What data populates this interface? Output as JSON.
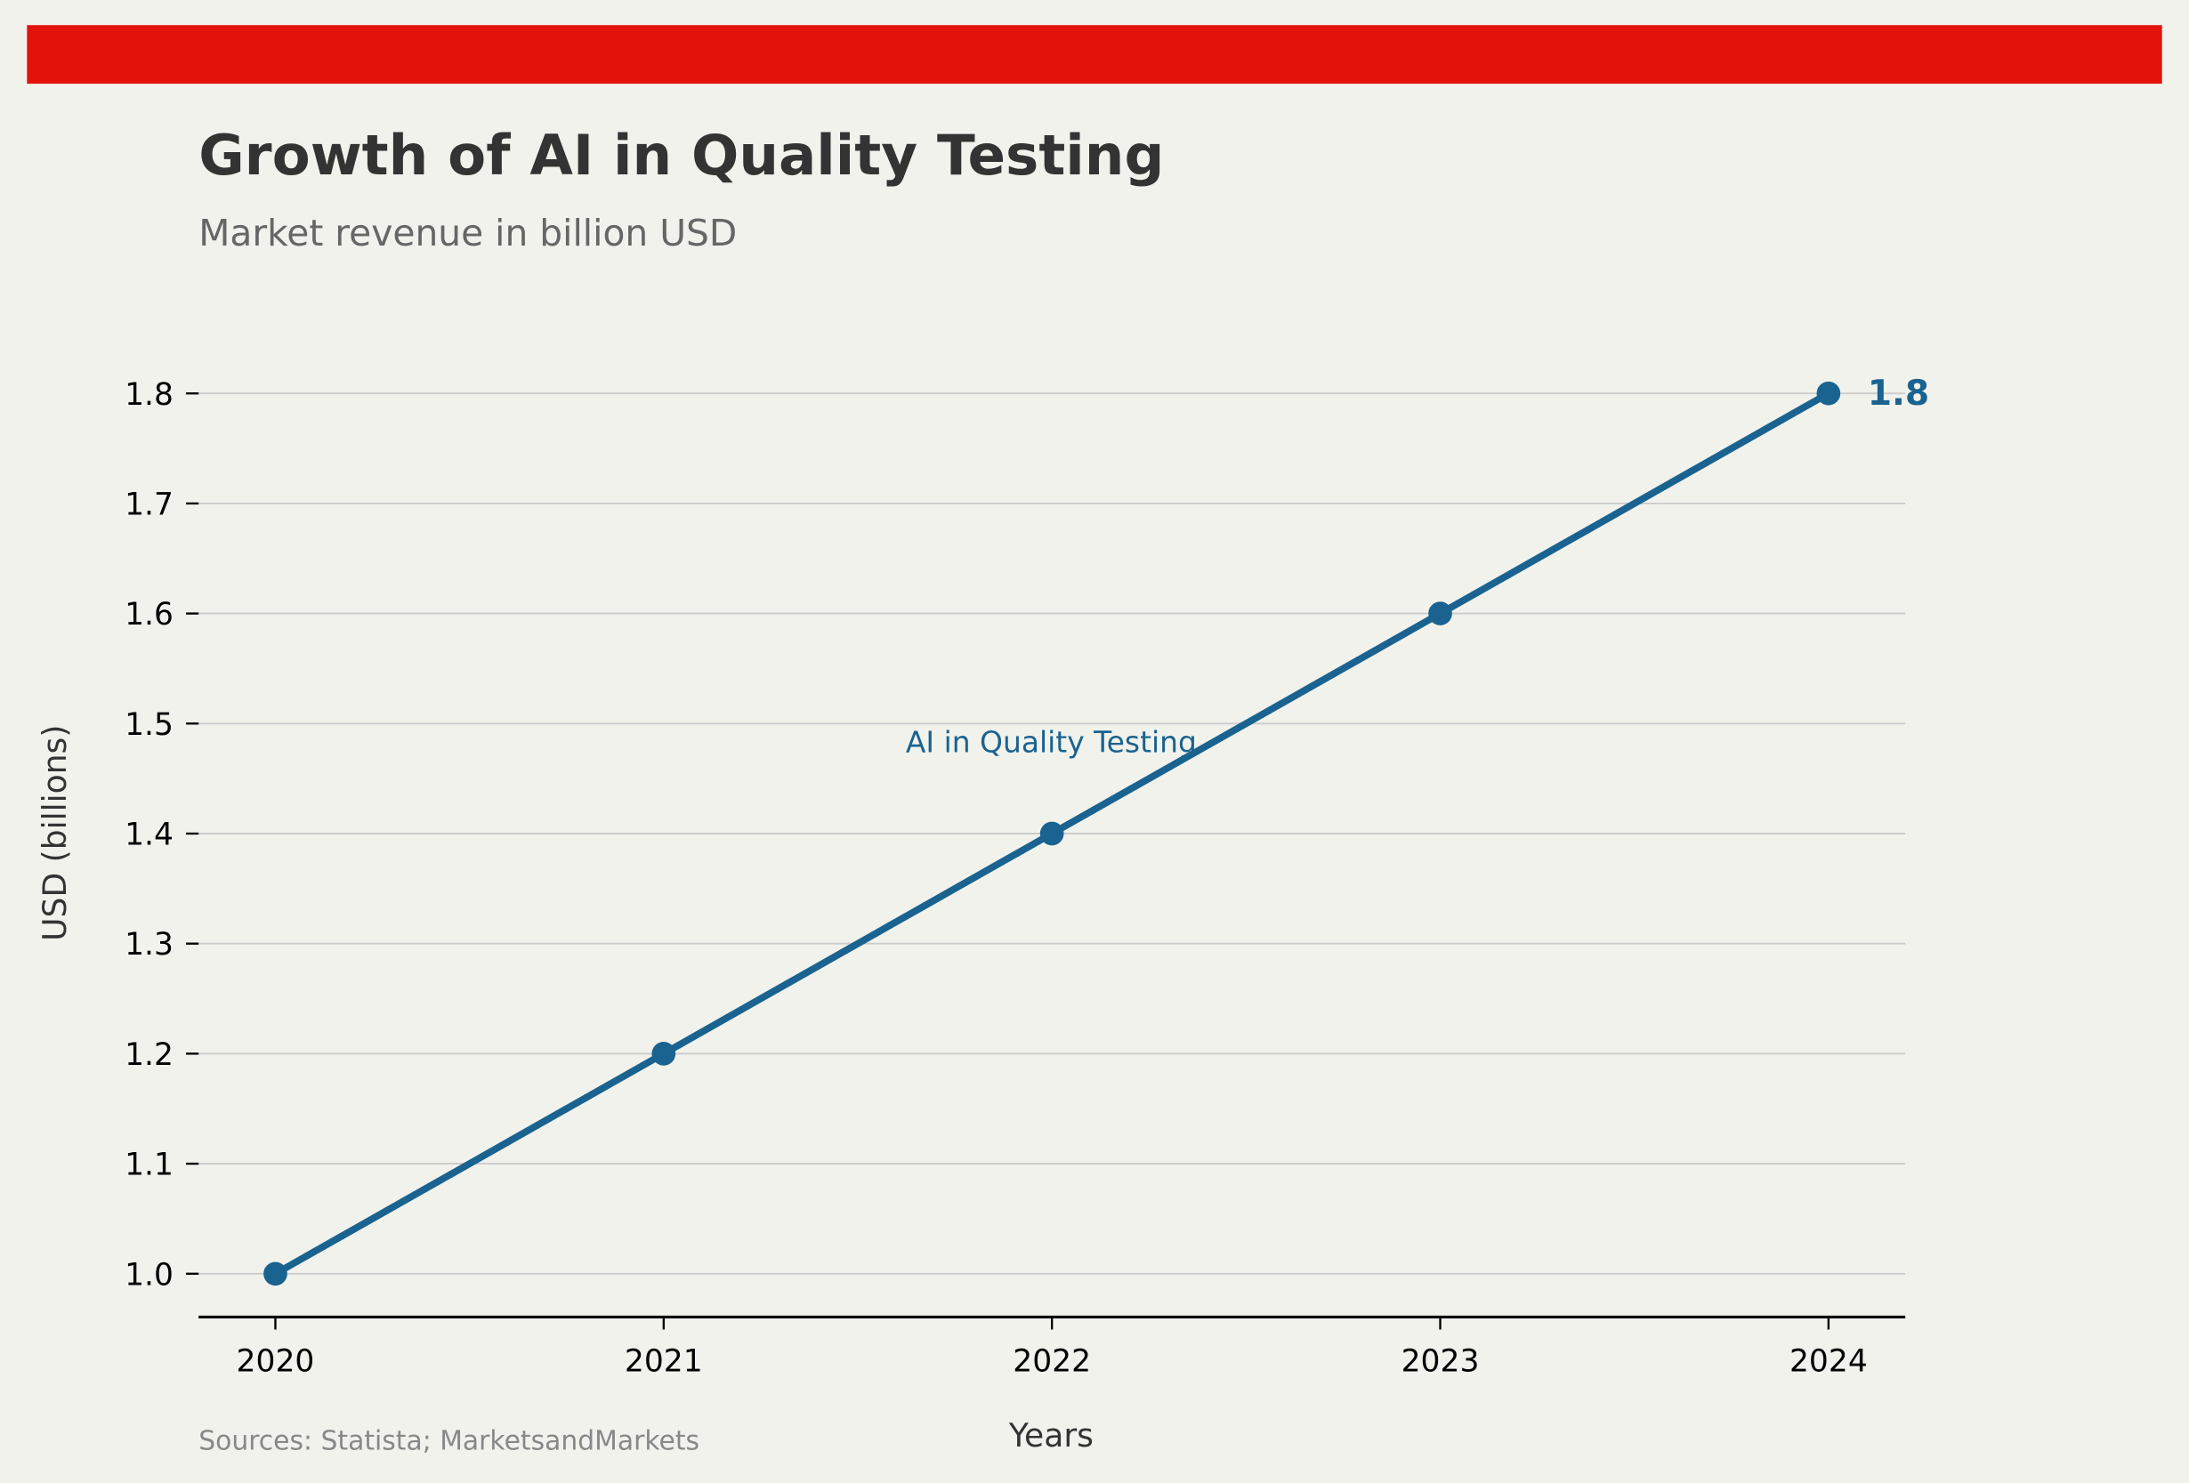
{
  "colors": {
    "background": "#f2f2ec",
    "accent_bar": "#e3120b",
    "series": "#1a6390",
    "grid": "#cccccc",
    "title": "#333333",
    "subtitle": "#666666",
    "source": "#888888"
  },
  "chart_data": {
    "type": "line",
    "title": "Growth of AI in Quality Testing",
    "subtitle": "Market revenue in billion USD",
    "xlabel": "Years",
    "ylabel": "USD (billions)",
    "source": "Sources: Statista; MarketsandMarkets",
    "x": [
      2020,
      2021,
      2022,
      2023,
      2024
    ],
    "x_tick_labels": [
      "2020",
      "2021",
      "2022",
      "2023",
      "2024"
    ],
    "y_ticks": [
      1.0,
      1.1,
      1.2,
      1.3,
      1.4,
      1.5,
      1.6,
      1.7,
      1.8
    ],
    "y_tick_labels": [
      "1.0",
      "1.1",
      "1.2",
      "1.3",
      "1.4",
      "1.5",
      "1.6",
      "1.7",
      "1.8"
    ],
    "ylim": [
      0.96,
      1.84
    ],
    "grid": "horizontal",
    "series": [
      {
        "name": "AI in Quality Testing",
        "values": [
          1.0,
          1.2,
          1.4,
          1.6,
          1.8
        ]
      }
    ],
    "end_label": "1.8",
    "series_label": "AI in Quality Testing"
  }
}
